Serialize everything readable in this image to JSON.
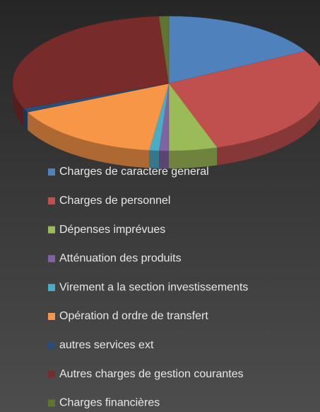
{
  "chart_data": {
    "type": "pie",
    "categories": [
      "Charges de caractere general",
      "Charges de personnel",
      "Dépenses imprévues",
      "Atténuation des produits",
      "Virement a la section investissements",
      "Opération d ordre de transfert",
      "autres services ext",
      "Autres charges de gestion courantes",
      "Charges financières"
    ],
    "values": [
      17,
      28,
      5,
      1,
      1,
      16,
      1,
      30,
      1
    ],
    "colors": [
      "#4F81BD",
      "#C0504D",
      "#9BBB59",
      "#8064A2",
      "#4BACC6",
      "#F79646",
      "#2C4D75",
      "#772C2A",
      "#5F7530"
    ],
    "legend": "bottom"
  }
}
